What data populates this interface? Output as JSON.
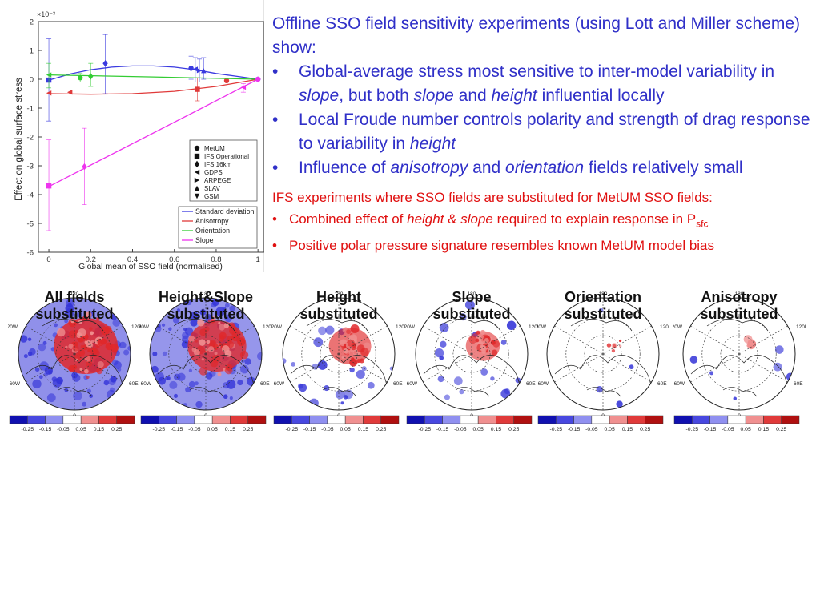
{
  "chart_data": {
    "type": "scatter",
    "title": "",
    "xlabel": "Global mean of SSO field (normalised)",
    "ylabel": "Effect on global surface stress",
    "ylim": [
      -6,
      2
    ],
    "xlim": [
      -0.05,
      1.03
    ],
    "y_multiplier_label": "×10⁻³",
    "x_ticks": [
      "0",
      "0.2",
      "0.4",
      "0.6",
      "0.8",
      "1"
    ],
    "y_ticks": [
      "2",
      "1",
      "0",
      "-1",
      "-2",
      "-3",
      "-4",
      "-5",
      "-6"
    ],
    "markers_legend": [
      "MetUM",
      "IFS Operational",
      "IFS 16km",
      "GDPS",
      "ARPEGE",
      "SLAV",
      "GSM"
    ],
    "fit_legend": [
      {
        "name": "Standard deviation",
        "color": "#3a3ae0"
      },
      {
        "name": "Anisotropy",
        "color": "#e03a3a"
      },
      {
        "name": "Orientation",
        "color": "#33cc33"
      },
      {
        "name": "Slope",
        "color": "#ee33ee"
      }
    ],
    "series": [
      {
        "name": "Standard deviation",
        "color": "#3a3ae0",
        "fit": [
          {
            "x": 0,
            "y": -0.03
          },
          {
            "x": 0.1,
            "y": 0.18
          },
          {
            "x": 0.2,
            "y": 0.33
          },
          {
            "x": 0.3,
            "y": 0.42
          },
          {
            "x": 0.4,
            "y": 0.46
          },
          {
            "x": 0.5,
            "y": 0.46
          },
          {
            "x": 0.6,
            "y": 0.42
          },
          {
            "x": 0.7,
            "y": 0.33
          },
          {
            "x": 0.8,
            "y": 0.2
          },
          {
            "x": 0.9,
            "y": 0.1
          },
          {
            "x": 1.0,
            "y": 0.0
          }
        ],
        "points": [
          {
            "x": 0.0,
            "y": -0.03,
            "lo": -1.45,
            "hi": 1.4,
            "marker": "square"
          },
          {
            "x": 0.27,
            "y": 0.55,
            "lo": -0.5,
            "hi": 1.55,
            "marker": "diamond"
          },
          {
            "x": 0.68,
            "y": 0.38,
            "lo": 0.0,
            "hi": 0.8,
            "marker": "circle"
          },
          {
            "x": 0.7,
            "y": 0.35,
            "lo": -0.1,
            "hi": 0.75,
            "marker": "tri-left"
          },
          {
            "x": 0.72,
            "y": 0.3,
            "lo": -0.1,
            "hi": 0.7,
            "marker": "tri-right"
          },
          {
            "x": 0.74,
            "y": 0.3,
            "lo": 0.0,
            "hi": 0.75,
            "marker": "tri-up"
          },
          {
            "x": 1.0,
            "y": 0.0,
            "lo": 0.0,
            "hi": 0.0,
            "marker": "circle"
          }
        ]
      },
      {
        "name": "Anisotropy",
        "color": "#e03a3a",
        "fit": [
          {
            "x": 0,
            "y": -0.5
          },
          {
            "x": 0.2,
            "y": -0.52
          },
          {
            "x": 0.4,
            "y": -0.5
          },
          {
            "x": 0.6,
            "y": -0.42
          },
          {
            "x": 0.8,
            "y": -0.25
          },
          {
            "x": 1.0,
            "y": 0.0
          }
        ],
        "points": [
          {
            "x": 0.0,
            "y": -0.48,
            "lo": -0.48,
            "hi": -0.48,
            "marker": "tri-left"
          },
          {
            "x": 0.1,
            "y": -0.45,
            "lo": -0.45,
            "hi": -0.45,
            "marker": "tri-left"
          },
          {
            "x": 0.71,
            "y": -0.35,
            "lo": -0.75,
            "hi": 0.05,
            "marker": "square"
          },
          {
            "x": 0.85,
            "y": -0.05,
            "lo": -0.05,
            "hi": -0.05,
            "marker": "circle"
          }
        ]
      },
      {
        "name": "Orientation",
        "color": "#33cc33",
        "fit": [
          {
            "x": 0,
            "y": 0.15
          },
          {
            "x": 0.5,
            "y": 0.08
          },
          {
            "x": 1.0,
            "y": 0.0
          }
        ],
        "points": [
          {
            "x": 0.0,
            "y": 0.15,
            "lo": -0.3,
            "hi": 0.55,
            "marker": "tri-left"
          },
          {
            "x": 0.15,
            "y": 0.05,
            "lo": -0.1,
            "hi": 0.2,
            "marker": "circle"
          },
          {
            "x": 0.2,
            "y": 0.1,
            "lo": -0.25,
            "hi": 0.55,
            "marker": "diamond"
          }
        ]
      },
      {
        "name": "Slope",
        "color": "#ee33ee",
        "fit": [
          {
            "x": 0,
            "y": -3.72
          },
          {
            "x": 1.0,
            "y": 0.0
          }
        ],
        "points": [
          {
            "x": 0.0,
            "y": -3.7,
            "lo": -5.25,
            "hi": -2.1,
            "marker": "square"
          },
          {
            "x": 0.17,
            "y": -3.03,
            "lo": -4.35,
            "hi": -1.7,
            "marker": "diamond"
          },
          {
            "x": 0.93,
            "y": -0.28,
            "lo": -0.45,
            "hi": -0.15,
            "marker": "tri-left"
          },
          {
            "x": 1.0,
            "y": 0.0,
            "lo": 0.0,
            "hi": 0.0,
            "marker": "circle"
          }
        ]
      }
    ]
  },
  "summary": {
    "intro": "Offline SSO field sensitivity experiments (using Lott and Miller scheme) show:",
    "bullet_symbol": "•",
    "bullets": [
      [
        {
          "t": "Global-average stress most sensitive to inter-model variability in ",
          "i": false
        },
        {
          "t": "slope",
          "i": true
        },
        {
          "t": ", but both ",
          "i": false
        },
        {
          "t": "slope",
          "i": true
        },
        {
          "t": " and ",
          "i": false
        },
        {
          "t": "height",
          "i": true
        },
        {
          "t": " influential locally",
          "i": false
        }
      ],
      [
        {
          "t": "Local Froude number controls polarity and strength of drag response to variability in ",
          "i": false
        },
        {
          "t": "height",
          "i": true
        }
      ],
      [
        {
          "t": "Influence of ",
          "i": false
        },
        {
          "t": "anisotropy",
          "i": true
        },
        {
          "t": " and ",
          "i": false
        },
        {
          "t": "orientation",
          "i": true
        },
        {
          "t": " fields relatively small",
          "i": false
        }
      ]
    ]
  },
  "ifs": {
    "intro": "IFS experiments where SSO fields are substituted for MetUM SSO fields:",
    "bullet_symbol": "•",
    "bullets": [
      [
        {
          "t": "Combined effect of ",
          "i": false
        },
        {
          "t": "height",
          "i": true
        },
        {
          "t": " & ",
          "i": false
        },
        {
          "t": "slope",
          "i": true
        },
        {
          "t": " required to explain response in P",
          "i": false
        },
        {
          "t": "sfc",
          "i": false,
          "sub": true
        }
      ],
      [
        {
          "t": "Positive polar pressure signature resembles known MetUM model bias",
          "i": false
        }
      ]
    ]
  },
  "maps": {
    "colors": {
      "blue": "#3535d8",
      "red": "#e0282a"
    },
    "lon_labels": {
      "top": "180",
      "upper_left": "120W",
      "upper_right": "120E",
      "lower_left": "60W",
      "lower_right": "60E",
      "bottom": "0"
    },
    "colorbar": {
      "colors": [
        "#1010b0",
        "#4848e0",
        "#9090f0",
        "#ffffff",
        "#f09090",
        "#e03a3a",
        "#b01010"
      ],
      "tick_labels": [
        "-0.25",
        "-0.15",
        "-0.05",
        "0.05",
        "0.15",
        "0.25"
      ]
    },
    "panels": [
      {
        "title": [
          "All fields",
          "substituted"
        ],
        "red_intensity": 1.0,
        "blue_intensity": 1.0
      },
      {
        "title": [
          "Height&Slope",
          "substituted"
        ],
        "red_intensity": 0.9,
        "blue_intensity": 0.95
      },
      {
        "title": [
          "Height",
          "substituted"
        ],
        "red_intensity": 0.6,
        "blue_intensity": 0.3
      },
      {
        "title": [
          "Slope",
          "substituted"
        ],
        "red_intensity": 0.45,
        "blue_intensity": 0.25
      },
      {
        "title": [
          "Orientation",
          "substituted"
        ],
        "red_intensity": 0.05,
        "blue_intensity": 0.05
      },
      {
        "title": [
          "Anisotropy",
          "substituted"
        ],
        "red_intensity": 0.08,
        "blue_intensity": 0.08
      }
    ]
  }
}
